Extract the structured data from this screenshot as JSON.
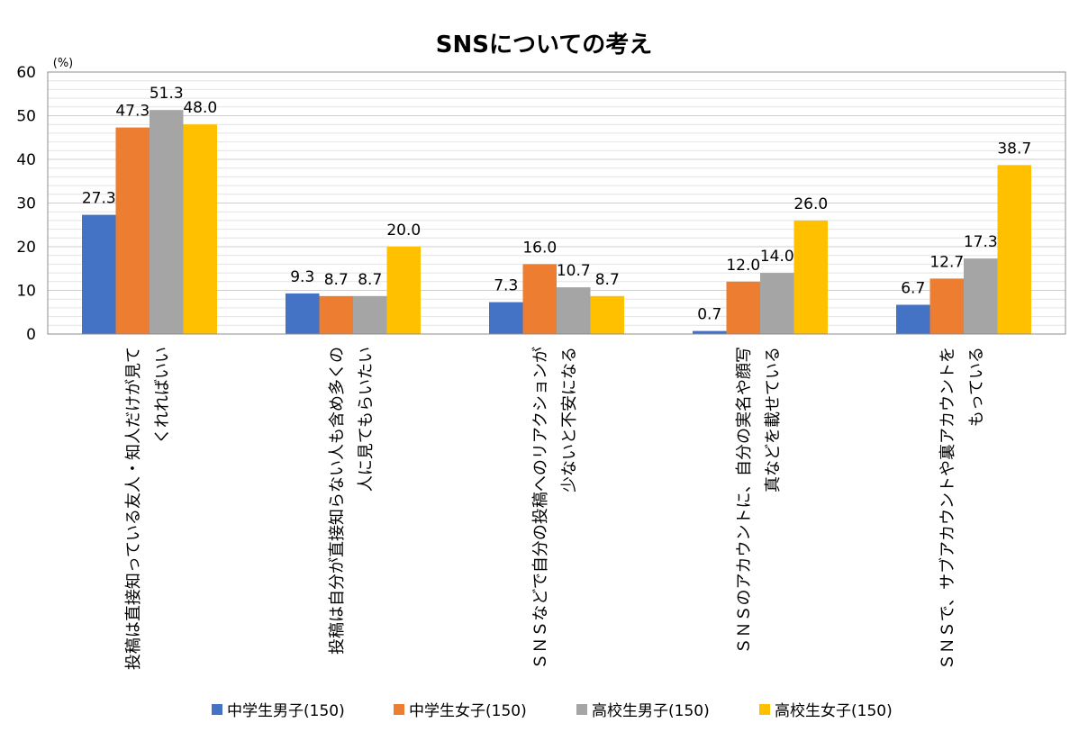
{
  "chart_data": {
    "type": "bar",
    "title": "SNSについての考え",
    "unit_label": "(%)",
    "ylim": [
      0,
      60
    ],
    "yticks": [
      "0",
      "10",
      "20",
      "30",
      "40",
      "50",
      "60"
    ],
    "ytick_values": [
      0,
      10,
      20,
      30,
      40,
      50,
      60
    ],
    "grid": true,
    "legend_position": "bottom",
    "categories": [
      [
        "投稿は直接知っている友人・知人だけが見て",
        "くれればいい"
      ],
      [
        "投稿は自分が直接知らない人も含め多くの",
        "人に見てもらいたい"
      ],
      [
        "ＳＮＳなどで自分の投稿へのリアクションが",
        "少ないと不安になる"
      ],
      [
        "ＳＮＳのアカウントに、自分の実名や顔写",
        "真などを載せている"
      ],
      [
        "ＳＮＳで、サブアカウントや裏アカウントを",
        "もっている"
      ]
    ],
    "series": [
      {
        "name": "中学生男子(150)",
        "color": "#4472C4",
        "values": [
          27.3,
          9.3,
          7.3,
          0.7,
          6.7
        ],
        "labels": [
          "27.3",
          "9.3",
          "7.3",
          "0.7",
          "6.7"
        ]
      },
      {
        "name": "中学生女子(150)",
        "color": "#ED7D31",
        "values": [
          47.3,
          8.7,
          16.0,
          12.0,
          12.7
        ],
        "labels": [
          "47.3",
          "8.7",
          "16.0",
          "12.0",
          "12.7"
        ]
      },
      {
        "name": "高校生男子(150)",
        "color": "#A5A5A5",
        "values": [
          51.3,
          8.7,
          10.7,
          14.0,
          17.3
        ],
        "labels": [
          "51.3",
          "8.7",
          "10.7",
          "14.0",
          "17.3"
        ]
      },
      {
        "name": "高校生女子(150)",
        "color": "#FFC000",
        "values": [
          48.0,
          20.0,
          8.7,
          26.0,
          38.7
        ],
        "labels": [
          "48.0",
          "20.0",
          "8.7",
          "26.0",
          "38.7"
        ]
      }
    ]
  }
}
